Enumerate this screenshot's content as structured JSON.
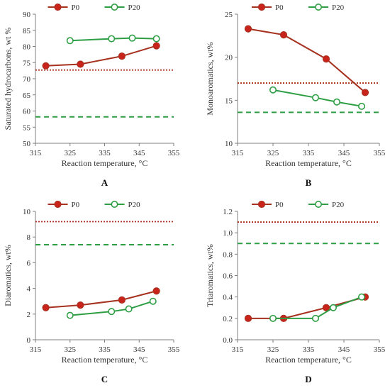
{
  "colors": {
    "p0": "#a6311f",
    "p0_marker": "#c8241c",
    "p20": "#2e9e44",
    "ref_p0": "#a6311f",
    "ref_p20": "#2e9e44",
    "axis": "#7f7f7f"
  },
  "chart_data": [
    {
      "type": "line",
      "panel": "A",
      "xlabel": "Reaction temperature, °C",
      "ylabel": "Saturated hydrocarbons, wt %",
      "xlim": [
        315,
        355
      ],
      "ylim": [
        50,
        90
      ],
      "xticks": [
        315,
        325,
        335,
        345,
        355
      ],
      "yticks": [
        50,
        55,
        60,
        65,
        70,
        75,
        80,
        85,
        90
      ],
      "ytick_decimals": 0,
      "legend_position": "top-center",
      "series": [
        {
          "name": "P0",
          "x": [
            318,
            328,
            340,
            350
          ],
          "y": [
            74.0,
            74.5,
            77.0,
            80.2
          ],
          "marker": "filled"
        },
        {
          "name": "P20",
          "x": [
            325,
            337,
            343,
            350
          ],
          "y": [
            81.8,
            82.4,
            82.6,
            82.4
          ],
          "marker": "open"
        }
      ],
      "reference_lines": [
        {
          "series": "P0",
          "y": 72.7,
          "style": "dotted"
        },
        {
          "series": "P20",
          "y": 58.2,
          "style": "dashed"
        }
      ]
    },
    {
      "type": "line",
      "panel": "B",
      "xlabel": "Reaction temperature, °C",
      "ylabel": "Monoaromatics, wt%",
      "xlim": [
        315,
        355
      ],
      "ylim": [
        10,
        25
      ],
      "xticks": [
        315,
        325,
        335,
        345,
        355
      ],
      "yticks": [
        10,
        15,
        20,
        25
      ],
      "ytick_decimals": 0,
      "legend_position": "top-center",
      "series": [
        {
          "name": "P0",
          "x": [
            318,
            328,
            340,
            351
          ],
          "y": [
            23.3,
            22.6,
            19.8,
            15.9
          ],
          "marker": "filled"
        },
        {
          "name": "P20",
          "x": [
            325,
            337,
            343,
            350
          ],
          "y": [
            16.2,
            15.3,
            14.8,
            14.3
          ],
          "marker": "open"
        }
      ],
      "reference_lines": [
        {
          "series": "P0",
          "y": 17.0,
          "style": "dotted"
        },
        {
          "series": "P20",
          "y": 13.6,
          "style": "dashed"
        }
      ]
    },
    {
      "type": "line",
      "panel": "C",
      "xlabel": "Reaction temperature, °C",
      "ylabel": "Diaromatics, wt%",
      "xlim": [
        315,
        355
      ],
      "ylim": [
        0,
        10
      ],
      "xticks": [
        315,
        325,
        335,
        345,
        355
      ],
      "yticks": [
        0,
        2,
        4,
        6,
        8,
        10
      ],
      "ytick_decimals": 0,
      "legend_position": "top-center",
      "series": [
        {
          "name": "P0",
          "x": [
            318,
            328,
            340,
            350
          ],
          "y": [
            2.5,
            2.7,
            3.1,
            3.8
          ],
          "marker": "filled"
        },
        {
          "name": "P20",
          "x": [
            325,
            337,
            342,
            349
          ],
          "y": [
            1.9,
            2.2,
            2.4,
            3.0
          ],
          "marker": "open"
        }
      ],
      "reference_lines": [
        {
          "series": "P0",
          "y": 9.2,
          "style": "dotted"
        },
        {
          "series": "P20",
          "y": 7.4,
          "style": "dashed"
        }
      ]
    },
    {
      "type": "line",
      "panel": "D",
      "xlabel": "Reaction temperature, °C",
      "ylabel": "Triaromatics, wt%",
      "xlim": [
        315,
        355
      ],
      "ylim": [
        0,
        1.2
      ],
      "xticks": [
        315,
        325,
        335,
        345,
        355
      ],
      "yticks": [
        0,
        0.2,
        0.4,
        0.6,
        0.8,
        1.0,
        1.2
      ],
      "ytick_decimals": 1,
      "legend_position": "top-center",
      "series": [
        {
          "name": "P0",
          "x": [
            318,
            328,
            340,
            351
          ],
          "y": [
            0.2,
            0.2,
            0.3,
            0.4
          ],
          "marker": "filled"
        },
        {
          "name": "P20",
          "x": [
            325,
            337,
            342,
            350
          ],
          "y": [
            0.2,
            0.2,
            0.3,
            0.4
          ],
          "marker": "open"
        }
      ],
      "reference_lines": [
        {
          "series": "P0",
          "y": 1.1,
          "style": "dotted"
        },
        {
          "series": "P20",
          "y": 0.9,
          "style": "dashed"
        }
      ]
    }
  ]
}
